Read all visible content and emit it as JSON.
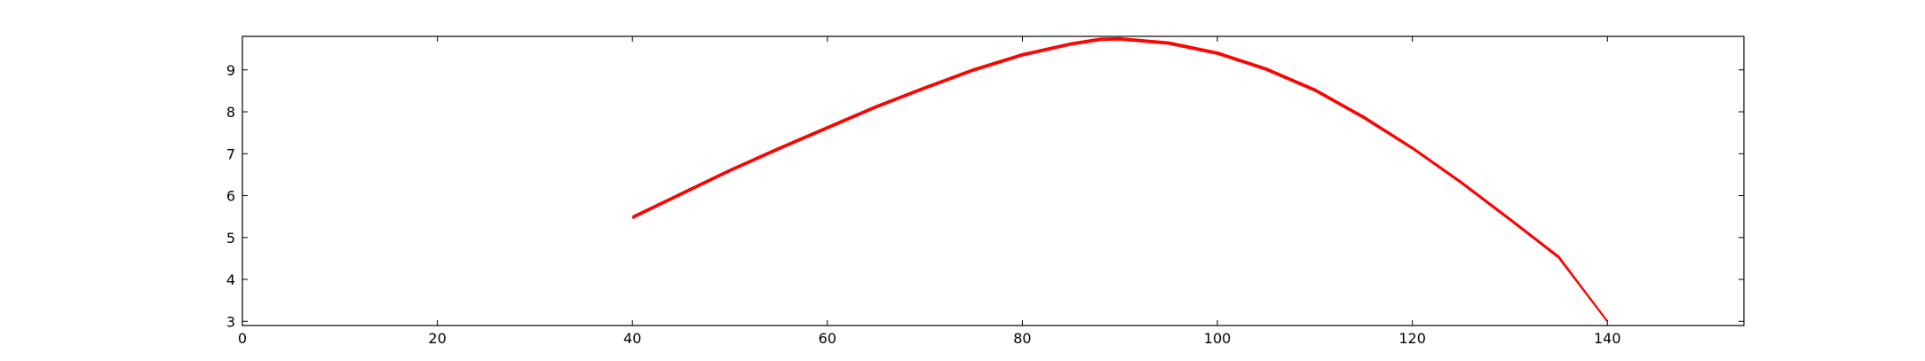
{
  "chart_data": {
    "type": "line",
    "title": "",
    "xlabel": "",
    "ylabel": "",
    "xlim": [
      0,
      154
    ],
    "ylim": [
      2.9,
      9.8
    ],
    "grid": false,
    "legend": "none",
    "x_ticks": [
      0,
      20,
      40,
      60,
      80,
      100,
      120,
      140
    ],
    "y_ticks": [
      3,
      4,
      5,
      6,
      7,
      8,
      9
    ],
    "colors": {
      "series": "#ff0000",
      "axes": "#000000",
      "background": "#ffffff"
    },
    "series": [
      {
        "color": "#ff0000",
        "x": [
          40,
          45,
          50,
          55,
          60,
          65,
          70,
          75,
          80,
          85,
          88,
          90,
          95,
          100,
          105,
          110,
          115,
          120,
          125,
          130,
          135,
          140
        ],
        "y": [
          5.46,
          6.02,
          6.58,
          7.1,
          7.6,
          8.1,
          8.55,
          8.98,
          9.34,
          9.6,
          9.71,
          9.72,
          9.62,
          9.38,
          9.0,
          8.5,
          7.85,
          7.12,
          6.3,
          5.42,
          4.52,
          3.0
        ]
      },
      {
        "color": "#ff0000",
        "x": [
          40,
          45,
          50,
          55,
          60,
          65,
          70,
          75,
          80,
          85,
          88,
          90,
          95,
          100,
          105,
          110,
          115,
          120,
          125,
          130,
          135,
          140
        ],
        "y": [
          5.5,
          6.06,
          6.62,
          7.14,
          7.64,
          8.14,
          8.59,
          9.02,
          9.38,
          9.64,
          9.75,
          9.76,
          9.66,
          9.42,
          9.04,
          8.54,
          7.89,
          7.15,
          6.33,
          5.45,
          4.55,
          3.0
        ]
      }
    ]
  }
}
